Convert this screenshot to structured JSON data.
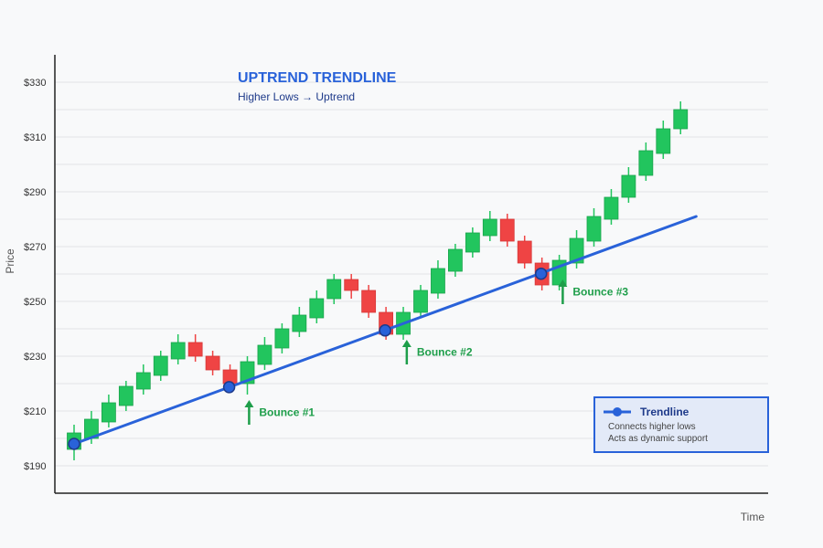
{
  "chart_data": {
    "type": "candlestick",
    "title": "UPTREND TRENDLINE",
    "subtitle": "Higher Lows → Uptrend",
    "xlabel": "Time",
    "ylabel": "Price",
    "y_ticks": [
      "$190",
      "$210",
      "$230",
      "$250",
      "$270",
      "$290",
      "$310",
      "$330"
    ],
    "y_tick_values": [
      190,
      210,
      230,
      250,
      270,
      290,
      310,
      330
    ],
    "ylim": [
      180,
      340
    ],
    "grid": true,
    "colors": {
      "up": "#22c55e",
      "down": "#ef4444",
      "trendline": "#2962d9",
      "bounce": "#1e9e4a",
      "title": "#2962d9",
      "subtitle": "#1e3a8a"
    },
    "candles": [
      {
        "o": 196,
        "c": 202,
        "h": 205,
        "l": 192
      },
      {
        "o": 200,
        "c": 207,
        "h": 210,
        "l": 198
      },
      {
        "o": 206,
        "c": 213,
        "h": 216,
        "l": 204
      },
      {
        "o": 212,
        "c": 219,
        "h": 221,
        "l": 210
      },
      {
        "o": 218,
        "c": 224,
        "h": 227,
        "l": 216
      },
      {
        "o": 223,
        "c": 230,
        "h": 232,
        "l": 221
      },
      {
        "o": 229,
        "c": 235,
        "h": 238,
        "l": 227
      },
      {
        "o": 235,
        "c": 230,
        "h": 238,
        "l": 228
      },
      {
        "o": 230,
        "c": 225,
        "h": 232,
        "l": 223
      },
      {
        "o": 225,
        "c": 220,
        "h": 227,
        "l": 218
      },
      {
        "o": 220,
        "c": 228,
        "h": 230,
        "l": 216
      },
      {
        "o": 227,
        "c": 234,
        "h": 237,
        "l": 225
      },
      {
        "o": 233,
        "c": 240,
        "h": 242,
        "l": 231
      },
      {
        "o": 239,
        "c": 245,
        "h": 248,
        "l": 237
      },
      {
        "o": 244,
        "c": 251,
        "h": 254,
        "l": 242
      },
      {
        "o": 251,
        "c": 258,
        "h": 260,
        "l": 249
      },
      {
        "o": 258,
        "c": 254,
        "h": 260,
        "l": 251
      },
      {
        "o": 254,
        "c": 246,
        "h": 256,
        "l": 244
      },
      {
        "o": 246,
        "c": 238,
        "h": 248,
        "l": 236
      },
      {
        "o": 238,
        "c": 246,
        "h": 248,
        "l": 236
      },
      {
        "o": 246,
        "c": 254,
        "h": 256,
        "l": 244
      },
      {
        "o": 253,
        "c": 262,
        "h": 265,
        "l": 251
      },
      {
        "o": 261,
        "c": 269,
        "h": 271,
        "l": 259
      },
      {
        "o": 268,
        "c": 275,
        "h": 277,
        "l": 266
      },
      {
        "o": 274,
        "c": 280,
        "h": 283,
        "l": 272
      },
      {
        "o": 280,
        "c": 272,
        "h": 282,
        "l": 270
      },
      {
        "o": 272,
        "c": 264,
        "h": 274,
        "l": 262
      },
      {
        "o": 264,
        "c": 256,
        "h": 266,
        "l": 254
      },
      {
        "o": 256,
        "c": 265,
        "h": 267,
        "l": 254
      },
      {
        "o": 264,
        "c": 273,
        "h": 276,
        "l": 262
      },
      {
        "o": 272,
        "c": 281,
        "h": 284,
        "l": 270
      },
      {
        "o": 280,
        "c": 288,
        "h": 291,
        "l": 278
      },
      {
        "o": 288,
        "c": 296,
        "h": 299,
        "l": 286
      },
      {
        "o": 296,
        "c": 305,
        "h": 308,
        "l": 294
      },
      {
        "o": 304,
        "c": 313,
        "h": 316,
        "l": 302
      },
      {
        "o": 313,
        "c": 320,
        "h": 323,
        "l": 311
      }
    ],
    "trendline": {
      "start_index": 0,
      "start_price": 198,
      "end_index": 35.9,
      "end_price": 281
    },
    "touch_points": [
      {
        "index": 0,
        "price": 198
      },
      {
        "index": 8.95,
        "price": 218.7
      },
      {
        "index": 17.95,
        "price": 239.4
      },
      {
        "index": 26.95,
        "price": 260.1
      }
    ],
    "annotations": [
      {
        "label": "Bounce #1",
        "index": 10.1,
        "price_from": 205,
        "price_to": 214
      },
      {
        "label": "Bounce #2",
        "index": 19.2,
        "price_from": 227,
        "price_to": 236
      },
      {
        "label": "Bounce #3",
        "index": 28.2,
        "price_from": 249,
        "price_to": 258
      }
    ],
    "legend": {
      "position": "bottom-right",
      "title": "Trendline",
      "lines": [
        "Connects higher lows",
        "Acts as dynamic support"
      ]
    }
  }
}
